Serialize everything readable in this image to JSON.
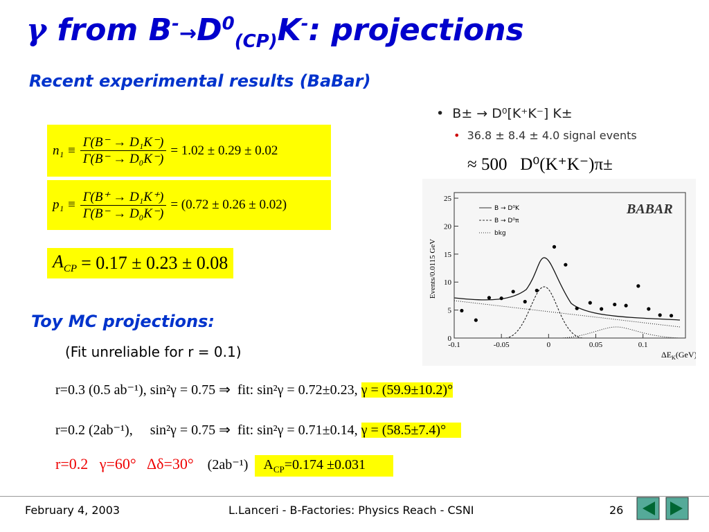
{
  "title": [
    "γ",
    " from B",
    "-",
    "→",
    "D",
    "0",
    "(CP)",
    "K",
    "-",
    ": projections"
  ],
  "subtitle": "Recent experimental results (BaBar)",
  "equations": [
    {
      "lhs": "n₁ ≡",
      "numerator": "Γ(B⁻ → D₁K⁻)",
      "denominator": "Γ(B⁻ → D₀K⁻)",
      "rhs": "= 1.02 ± 0.29 ± 0.02"
    },
    {
      "lhs": "p₁ ≡",
      "numerator": "Γ(B⁺ → D₁K⁺)",
      "denominator": "Γ(B⁻ → D₀K⁻)",
      "rhs": "= (0.72 ± 0.26 ± 0.02)"
    }
  ],
  "acp": {
    "symbol": "A",
    "sub": "CP",
    "rhs": "= 0.17 ± 0.23 ± 0.08"
  },
  "bullets": {
    "main": "B± → D⁰[K⁺K⁻] K±",
    "sub": "36.8 ± 8.4 ± 4.0 signal events",
    "note": "≈ 500   D⁰(K⁺K⁻)π±"
  },
  "plot": {
    "logo": "BABAR",
    "ylabel": "Events/0.0115 GeV",
    "xlabel": "ΔE",
    "xlabel_sub": "K",
    "xlabel_unit": "(GeV)",
    "legend": [
      "B → D⁰K",
      "B → D⁰π",
      "bkg"
    ],
    "xlim": [
      -0.1,
      0.145
    ],
    "ylim": [
      0,
      26
    ],
    "xticks": [
      -0.1,
      -0.05,
      0,
      0.05,
      0.1
    ],
    "yticks": [
      0,
      5,
      10,
      15,
      20,
      25
    ],
    "x": [
      -0.092,
      -0.077,
      -0.063,
      -0.05,
      -0.0375,
      -0.025,
      -0.0125,
      0.006,
      0.018,
      0.03,
      0.044,
      0.056,
      0.07,
      0.082,
      0.095,
      0.106,
      0.118,
      0.13
    ],
    "values": [
      4.9,
      3.2,
      7.2,
      7.1,
      8.3,
      6.5,
      8.5,
      16.3,
      13.1,
      5.3,
      6.3,
      5.2,
      6.0,
      5.8,
      9.3,
      5.2,
      4.1,
      4.0
    ]
  },
  "toy": {
    "heading": "Toy MC projections:",
    "note": "(Fit unreliable for r = 0.1)",
    "rows": [
      {
        "text": "r=0.3 (0.5 ab⁻¹), sin²γ = 0.75 ⇒  fit: sin²γ = 0.72±0.23,",
        "result": "γ = (59.9±10.2)°"
      },
      {
        "text": "r=0.2 (2ab⁻¹),     sin²γ = 0.75 ⇒  fit: sin²γ = 0.71±0.14,",
        "result": "γ = (58.5±7.4)°"
      }
    ],
    "last": {
      "red": "r=0.2   γ=60°   Δδ=30°",
      "text": "(2ab⁻¹)",
      "result_symbol": "A",
      "result_sub": "CP",
      "result": "=0.174 ±0.031"
    }
  },
  "footer": {
    "date": "February 4, 2003",
    "center": "L.Lanceri - B-Factories: Physics Reach - CSNI",
    "page": "26"
  }
}
